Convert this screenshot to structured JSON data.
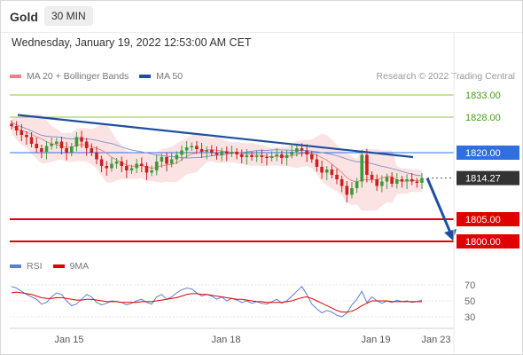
{
  "header": {
    "asset": "Gold",
    "timeframe": "30 MIN",
    "datetime": "Wednesday, January 19, 2022 12:53:00 AM CET"
  },
  "legend": {
    "ma20": "MA 20 + Bollinger Bands",
    "ma50": "MA 50",
    "copyright": "Research © 2022 Trading Central"
  },
  "rsi_legend": {
    "rsi": "RSI",
    "ma9": "9MA"
  },
  "colors": {
    "ma20": "#f08080",
    "ma50": "#1f4e9e",
    "rsi": "#5b7fd6",
    "ma9": "#e00000",
    "support": "#e00000",
    "resistance_green": "#8bc34a",
    "pivot": "#2f6fe0",
    "last_price": "#333333",
    "candle_up": "#3c9a3c",
    "candle_down": "#cc1f1f"
  },
  "chart_data": {
    "type": "candlestick",
    "instrument": "Gold",
    "timeframe": "30 MIN",
    "y_range": [
      1798,
      1837
    ],
    "x_labels": [
      "Jan 15",
      "Jan 18",
      "Jan 19",
      "Jan 23"
    ],
    "levels": [
      {
        "label": "1833.00",
        "value": 1833.0,
        "kind": "resistance"
      },
      {
        "label": "1828.00",
        "value": 1828.0,
        "kind": "resistance"
      },
      {
        "label": "1820.00",
        "value": 1820.0,
        "kind": "pivot"
      },
      {
        "label": "1814.27",
        "value": 1814.27,
        "kind": "last"
      },
      {
        "label": "1805.00",
        "value": 1805.0,
        "kind": "support"
      },
      {
        "label": "1800.00",
        "value": 1800.0,
        "kind": "support"
      }
    ],
    "trendline": {
      "from": 1828.5,
      "to": 1819.0
    },
    "forecast_arrow": {
      "from": 1814.27,
      "to": 1800.0
    },
    "close_path": [
      1826,
      1825,
      1824,
      1823.5,
      1822,
      1821,
      1820.2,
      1821.5,
      1822,
      1822.5,
      1821,
      1820,
      1821.4,
      1823.5,
      1822.5,
      1821,
      1820,
      1818.5,
      1817,
      1816.5,
      1817.5,
      1818,
      1817,
      1816,
      1816.5,
      1817.5,
      1817,
      1815.5,
      1816,
      1818,
      1819,
      1817.5,
      1818.5,
      1819.5,
      1820.5,
      1821.2,
      1821.5,
      1820.8,
      1820.2,
      1820.6,
      1820,
      1819.5,
      1820.3,
      1819.8,
      1820.2,
      1819.6,
      1819,
      1819.4,
      1819,
      1819.3,
      1819,
      1818.8,
      1819.2,
      1819.6,
      1818.8,
      1819.5,
      1820.2,
      1821,
      1820.5,
      1819.6,
      1818.5,
      1816.8,
      1815.5,
      1816.2,
      1815,
      1814,
      1812.5,
      1810.5,
      1812,
      1813.5,
      1819.5,
      1815,
      1814,
      1812.5,
      1813.5,
      1814.5,
      1813,
      1814,
      1813.5,
      1814,
      1813.5,
      1813.2,
      1814.3
    ],
    "rsi": {
      "ylim": [
        20,
        80
      ],
      "ticks": [
        70,
        50,
        30
      ],
      "values": [
        68,
        66,
        62,
        58,
        55,
        52,
        46,
        48,
        55,
        60,
        58,
        50,
        44,
        46,
        52,
        58,
        55,
        48,
        45,
        47,
        50,
        49,
        48,
        45,
        47,
        50,
        52,
        48,
        46,
        55,
        58,
        52,
        55,
        60,
        64,
        66,
        65,
        60,
        56,
        58,
        56,
        52,
        55,
        50,
        53,
        51,
        48,
        50,
        47,
        49,
        47,
        46,
        49,
        52,
        47,
        50,
        56,
        62,
        68,
        58,
        46,
        40,
        35,
        38,
        36,
        32,
        30,
        35,
        45,
        52,
        62,
        48,
        55,
        50,
        47,
        50,
        48,
        51,
        49,
        50,
        48,
        49,
        51
      ],
      "ma9": [
        60,
        61,
        60,
        59,
        58,
        56,
        54,
        53,
        53,
        54,
        54,
        53,
        52,
        51,
        51,
        52,
        52,
        51,
        50,
        49,
        49,
        49,
        48,
        48,
        48,
        48,
        49,
        49,
        49,
        50,
        51,
        52,
        53,
        54,
        56,
        58,
        59,
        59,
        58,
        58,
        57,
        56,
        55,
        54,
        53,
        52,
        52,
        51,
        50,
        49,
        49,
        48,
        48,
        48,
        48,
        49,
        50,
        52,
        54,
        55,
        53,
        50,
        47,
        44,
        41,
        38,
        36,
        36,
        37,
        40,
        44,
        47,
        50,
        50,
        50,
        50,
        49,
        49,
        49,
        49,
        49,
        49,
        49
      ]
    }
  }
}
